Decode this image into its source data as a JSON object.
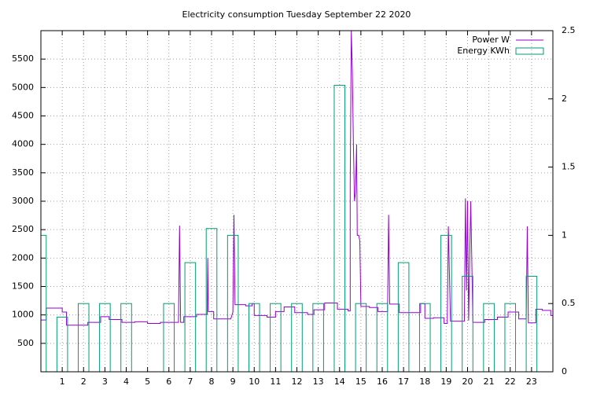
{
  "chart_data": {
    "type": "line",
    "title": "Electricity consumption Tuesday September 22 2020",
    "xlim": [
      0,
      24
    ],
    "xticks": [
      1,
      2,
      3,
      4,
      5,
      6,
      7,
      8,
      9,
      10,
      11,
      12,
      13,
      14,
      15,
      16,
      17,
      18,
      19,
      20,
      21,
      22,
      23
    ],
    "ylim": [
      0,
      6000
    ],
    "yticks": [
      500,
      1000,
      1500,
      2000,
      2500,
      3000,
      3500,
      4000,
      4500,
      5000,
      5500
    ],
    "y2lim": [
      0,
      2.5
    ],
    "y2ticks": [
      0,
      0.5,
      1,
      1.5,
      2,
      2.5
    ],
    "grid": true,
    "legend": "top-right",
    "series": [
      {
        "name": "Power W",
        "type": "line",
        "color": "#9400d3",
        "x": [
          0,
          0.25,
          0.25,
          1,
          1,
          1.2,
          1.2,
          2.2,
          2.2,
          2.8,
          2.8,
          3.2,
          3.2,
          3.8,
          3.8,
          4.4,
          4.4,
          5,
          5,
          5.6,
          5.6,
          6.45,
          6.5,
          6.55,
          6.7,
          6.7,
          7.3,
          7.3,
          7.8,
          7.82,
          7.85,
          8.1,
          8.1,
          8.9,
          9.0,
          9.05,
          9.1,
          9.6,
          9.6,
          9.9,
          9.9,
          10,
          10,
          10.6,
          10.6,
          11,
          11,
          11.4,
          11.4,
          11.9,
          11.9,
          12.5,
          12.5,
          12.8,
          12.8,
          13.3,
          13.3,
          13.9,
          13.9,
          14.4,
          14.4,
          14.5,
          14.5,
          14.55,
          14.6,
          14.65,
          14.7,
          14.75,
          14.8,
          14.83,
          14.9,
          14.95,
          15,
          15.4,
          15.4,
          15.8,
          15.8,
          16.25,
          16.3,
          16.35,
          16.8,
          16.8,
          17.8,
          17.8,
          18,
          18,
          18.4,
          18.4,
          18.9,
          18.9,
          19.05,
          19.1,
          19.2,
          19.85,
          19.9,
          19.95,
          20.0,
          20.05,
          20.15,
          20.25,
          20.8,
          20.8,
          21.4,
          21.4,
          21.9,
          21.9,
          22.4,
          22.4,
          22.75,
          22.8,
          22.85,
          23.2,
          23.2,
          23.5,
          23.5,
          23.9,
          23.9,
          24
        ],
        "values": [
          910,
          910,
          1120,
          1120,
          1050,
          1050,
          820,
          820,
          870,
          870,
          970,
          970,
          920,
          920,
          870,
          870,
          880,
          880,
          850,
          850,
          870,
          870,
          2570,
          870,
          870,
          970,
          970,
          1010,
          1010,
          2000,
          1060,
          1060,
          930,
          930,
          1050,
          2760,
          1180,
          1180,
          1160,
          1160,
          1200,
          1200,
          990,
          990,
          960,
          960,
          1060,
          1060,
          1140,
          1140,
          1040,
          1040,
          1010,
          1010,
          1090,
          1090,
          1210,
          1210,
          1100,
          1100,
          1070,
          1070,
          3280,
          6000,
          5280,
          4000,
          3000,
          3160,
          4000,
          2400,
          2400,
          2300,
          1150,
          1150,
          1130,
          1130,
          1060,
          1060,
          2760,
          1190,
          1190,
          1040,
          1040,
          1200,
          1200,
          940,
          940,
          950,
          950,
          850,
          850,
          2560,
          890,
          890,
          3050,
          1430,
          3000,
          900,
          3000,
          870,
          870,
          920,
          920,
          960,
          960,
          1050,
          1050,
          930,
          930,
          2560,
          860,
          860,
          1100,
          1100,
          1080,
          1080,
          990,
          990
        ]
      },
      {
        "name": "Energy KWh",
        "type": "bar",
        "axis": "y2",
        "color": "#009e73",
        "x": [
          0,
          1,
          2,
          3,
          4,
          5,
          6,
          7,
          8,
          9,
          10,
          11,
          12,
          13,
          14,
          15,
          16,
          17,
          18,
          19,
          20,
          21,
          22,
          23
        ],
        "values": [
          1.0,
          0.4,
          0.5,
          0.5,
          0.5,
          0,
          0.5,
          0.8,
          1.05,
          1.0,
          0.5,
          0.5,
          0.5,
          0.5,
          2.1,
          0.5,
          0.5,
          0.8,
          0.5,
          1.0,
          0.7,
          0.5,
          0.5,
          0.7
        ]
      }
    ]
  }
}
